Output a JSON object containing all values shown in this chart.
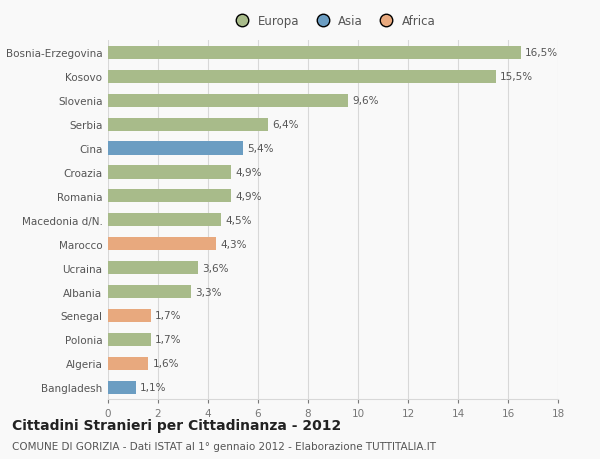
{
  "categories": [
    "Bangladesh",
    "Algeria",
    "Polonia",
    "Senegal",
    "Albania",
    "Ucraina",
    "Marocco",
    "Macedonia d/N.",
    "Romania",
    "Croazia",
    "Cina",
    "Serbia",
    "Slovenia",
    "Kosovo",
    "Bosnia-Erzegovina"
  ],
  "values": [
    1.1,
    1.6,
    1.7,
    1.7,
    3.3,
    3.6,
    4.3,
    4.5,
    4.9,
    4.9,
    5.4,
    6.4,
    9.6,
    15.5,
    16.5
  ],
  "colors": [
    "#6b9dc2",
    "#e8a97e",
    "#a8bb8a",
    "#e8a97e",
    "#a8bb8a",
    "#a8bb8a",
    "#e8a97e",
    "#a8bb8a",
    "#a8bb8a",
    "#a8bb8a",
    "#6b9dc2",
    "#a8bb8a",
    "#a8bb8a",
    "#a8bb8a",
    "#a8bb8a"
  ],
  "labels": [
    "1,1%",
    "1,6%",
    "1,7%",
    "1,7%",
    "3,3%",
    "3,6%",
    "4,3%",
    "4,5%",
    "4,9%",
    "4,9%",
    "5,4%",
    "6,4%",
    "9,6%",
    "15,5%",
    "16,5%"
  ],
  "legend_items": [
    {
      "label": "Europa",
      "color": "#a8bb8a"
    },
    {
      "label": "Asia",
      "color": "#6b9dc2"
    },
    {
      "label": "Africa",
      "color": "#e8a97e"
    }
  ],
  "xlim": [
    0,
    18
  ],
  "xticks": [
    0,
    2,
    4,
    6,
    8,
    10,
    12,
    14,
    16,
    18
  ],
  "title": "Cittadini Stranieri per Cittadinanza - 2012",
  "subtitle": "COMUNE DI GORIZIA - Dati ISTAT al 1° gennaio 2012 - Elaborazione TUTTITALIA.IT",
  "background_color": "#f9f9f9",
  "grid_color": "#d8d8d8",
  "bar_height": 0.55,
  "label_fontsize": 7.5,
  "tick_fontsize": 7.5,
  "title_fontsize": 10,
  "subtitle_fontsize": 7.5
}
